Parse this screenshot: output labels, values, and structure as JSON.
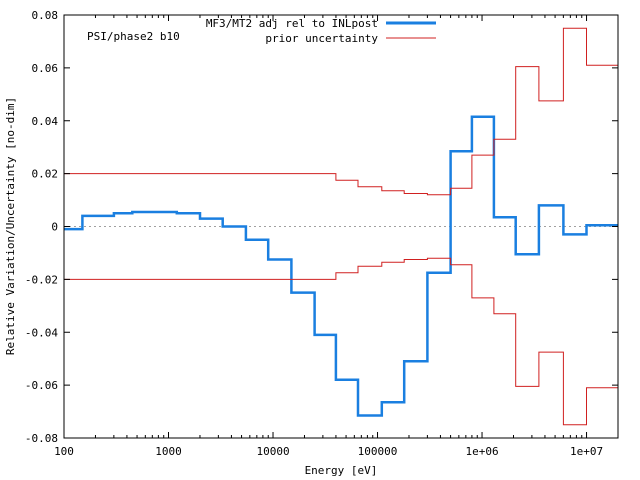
{
  "chart_data": {
    "type": "line",
    "step": true,
    "xscale": "log",
    "xlim": [
      100,
      20000000
    ],
    "ylim": [
      -0.08,
      0.08
    ],
    "xlabel": "Energy [eV]",
    "ylabel": "Relative Variation/Uncertainty [no-dim]",
    "annotation": "PSI/phase2 b10",
    "grid": false,
    "legend_position": "top-right",
    "x_ticks": [
      {
        "value": 100,
        "label": "100"
      },
      {
        "value": 1000,
        "label": "1000"
      },
      {
        "value": 10000,
        "label": "10000"
      },
      {
        "value": 100000,
        "label": "100000"
      },
      {
        "value": 1000000,
        "label": "1e+06"
      },
      {
        "value": 10000000,
        "label": "1e+07"
      }
    ],
    "y_ticks": [
      {
        "value": 0.08,
        "label": "0.08"
      },
      {
        "value": 0.06,
        "label": "0.06"
      },
      {
        "value": 0.04,
        "label": "0.04"
      },
      {
        "value": 0.02,
        "label": "0.02"
      },
      {
        "value": 0,
        "label": "0"
      },
      {
        "value": -0.02,
        "label": "-0.02"
      },
      {
        "value": -0.04,
        "label": "-0.04"
      },
      {
        "value": -0.06,
        "label": "-0.06"
      },
      {
        "value": -0.08,
        "label": "-0.08"
      }
    ],
    "series": [
      {
        "name": "MF3/MT2 adj rel to INLpost",
        "color": "#1a7fe0",
        "x": [
          100,
          150,
          300,
          450,
          1200,
          2000,
          3300,
          5500,
          9000,
          15000,
          25000,
          40000,
          65000,
          110000,
          180000,
          300000,
          500000,
          800000,
          1300000,
          2100000,
          3500000,
          6000000,
          10000000,
          20000000
        ],
        "y": [
          -0.001,
          0.004,
          0.005,
          0.0055,
          0.005,
          0.003,
          0.0,
          -0.005,
          -0.0125,
          -0.025,
          -0.041,
          -0.058,
          -0.0715,
          -0.0665,
          -0.051,
          -0.0175,
          0.0285,
          0.0415,
          0.0035,
          -0.0105,
          0.008,
          -0.003,
          0.0005,
          0.0005
        ]
      },
      {
        "name": "prior uncertainty",
        "color": "#d02020",
        "x": [
          100,
          40000,
          65000,
          110000,
          180000,
          300000,
          500000,
          800000,
          1300000,
          2100000,
          3500000,
          6000000,
          10000000,
          20000000
        ],
        "y": [
          0.02,
          0.0175,
          0.015,
          0.0135,
          0.0125,
          0.012,
          0.0145,
          0.027,
          0.033,
          0.0605,
          0.0475,
          0.075,
          0.061,
          0.061
        ],
        "mirror": true
      }
    ]
  }
}
